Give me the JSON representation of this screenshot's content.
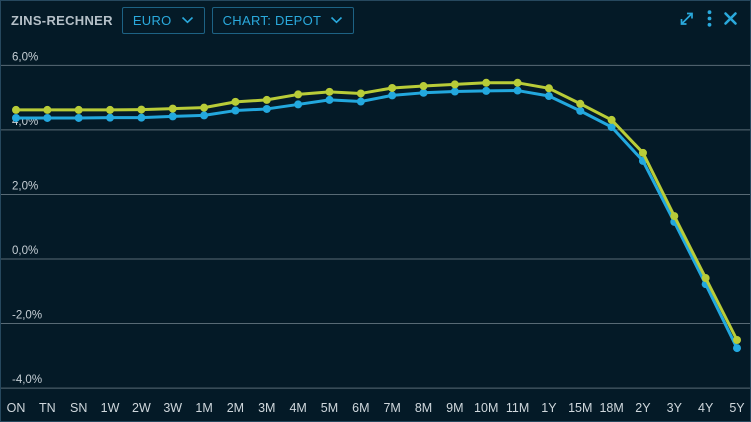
{
  "header": {
    "title": "ZINS-RECHNER",
    "currency_dropdown": {
      "label": "EURO",
      "icon": "chevron-down-icon"
    },
    "chart_dropdown": {
      "label": "CHART: DEPOT",
      "icon": "chevron-down-icon"
    },
    "icon_buttons": [
      {
        "name": "fullscreen",
        "icon": "expand-arrows-icon"
      },
      {
        "name": "menu",
        "icon": "kebab-menu-icon"
      },
      {
        "name": "close",
        "icon": "close-icon"
      }
    ]
  },
  "colors": {
    "background": "#041a27",
    "panel_border": "#26485e",
    "accent_cyan": "#2aa9dc",
    "grid": "#9fadb6",
    "axis_text": "#cdd5da",
    "series_yellow": "#b9cc38",
    "series_blue": "#23a8de"
  },
  "chart_data": {
    "type": "line",
    "title": "",
    "legend": "none",
    "grid": "horizontal",
    "categories": [
      "ON",
      "TN",
      "SN",
      "1W",
      "2W",
      "3W",
      "1M",
      "2M",
      "3M",
      "4M",
      "5M",
      "6M",
      "7M",
      "8M",
      "9M",
      "10M",
      "11M",
      "1Y",
      "15M",
      "18M",
      "2Y",
      "3Y",
      "4Y",
      "5Y"
    ],
    "series": [
      {
        "color": "#23a8de",
        "marker": "circle",
        "values": [
          4.37,
          4.37,
          4.37,
          4.38,
          4.38,
          4.42,
          4.45,
          4.6,
          4.65,
          4.79,
          4.93,
          4.88,
          5.07,
          5.15,
          5.19,
          5.21,
          5.22,
          5.05,
          4.59,
          4.09,
          3.04,
          1.15,
          -0.78,
          -2.76
        ]
      },
      {
        "color": "#b9cc38",
        "marker": "circle",
        "values": [
          4.62,
          4.62,
          4.62,
          4.62,
          4.63,
          4.66,
          4.69,
          4.87,
          4.93,
          5.1,
          5.18,
          5.13,
          5.3,
          5.36,
          5.41,
          5.46,
          5.46,
          5.29,
          4.81,
          4.31,
          3.29,
          1.33,
          -0.59,
          -2.51
        ]
      }
    ],
    "yticks": [
      {
        "value": 6,
        "label": "6,0%"
      },
      {
        "value": 4,
        "label": "4,0%"
      },
      {
        "value": 2,
        "label": "2,0%"
      },
      {
        "value": 0,
        "label": "0,0%"
      },
      {
        "value": -2,
        "label": "-2,0%"
      },
      {
        "value": -4,
        "label": "-4,0%"
      }
    ],
    "ylim": [
      -4.7,
      6.8
    ],
    "xlabel": "",
    "ylabel": ""
  }
}
